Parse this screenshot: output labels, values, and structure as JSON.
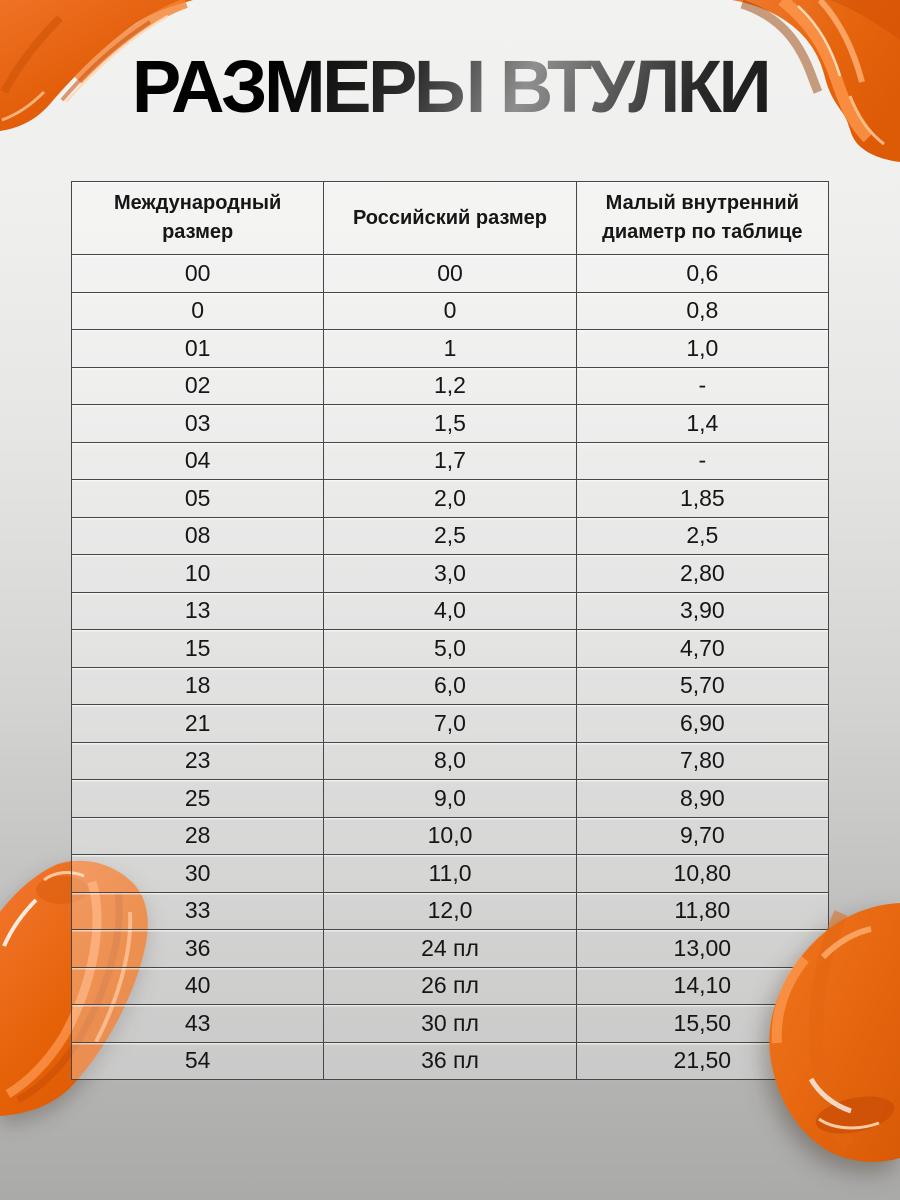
{
  "page": {
    "title": "РАЗМЕРЫ ВТУЛКИ"
  },
  "colors": {
    "paint_orange": "#e8650f",
    "paint_highlight": "#ff9b52",
    "paint_shadow": "#c94e05",
    "table_border": "#474747",
    "background_top": "#f2f2f1",
    "background_bottom": "#a9a9a8"
  },
  "table": {
    "columns": [
      "Международный размер",
      "Российский размер",
      "Малый внутренний диаметр по таблице"
    ],
    "rows": [
      [
        "00",
        "00",
        "0,6"
      ],
      [
        "0",
        "0",
        "0,8"
      ],
      [
        "01",
        "1",
        "1,0"
      ],
      [
        "02",
        "1,2",
        "-"
      ],
      [
        "03",
        "1,5",
        "1,4"
      ],
      [
        "04",
        "1,7",
        "-"
      ],
      [
        "05",
        "2,0",
        "1,85"
      ],
      [
        "08",
        "2,5",
        "2,5"
      ],
      [
        "10",
        "3,0",
        "2,80"
      ],
      [
        "13",
        "4,0",
        "3,90"
      ],
      [
        "15",
        "5,0",
        "4,70"
      ],
      [
        "18",
        "6,0",
        "5,70"
      ],
      [
        "21",
        "7,0",
        "6,90"
      ],
      [
        "23",
        "8,0",
        "7,80"
      ],
      [
        "25",
        "9,0",
        "8,90"
      ],
      [
        "28",
        "10,0",
        "9,70"
      ],
      [
        "30",
        "11,0",
        "10,80"
      ],
      [
        "33",
        "12,0",
        "11,80"
      ],
      [
        "36",
        "24 пл",
        "13,00"
      ],
      [
        "40",
        "26 пл",
        "14,10"
      ],
      [
        "43",
        "30 пл",
        "15,50"
      ],
      [
        "54",
        "36 пл",
        "21,50"
      ]
    ]
  },
  "decorations": {
    "top_left": "orange-paint-smear",
    "top_right": "orange-paint-smear",
    "bottom_left": "orange-paint-smear",
    "bottom_right": "orange-paint-blob"
  }
}
